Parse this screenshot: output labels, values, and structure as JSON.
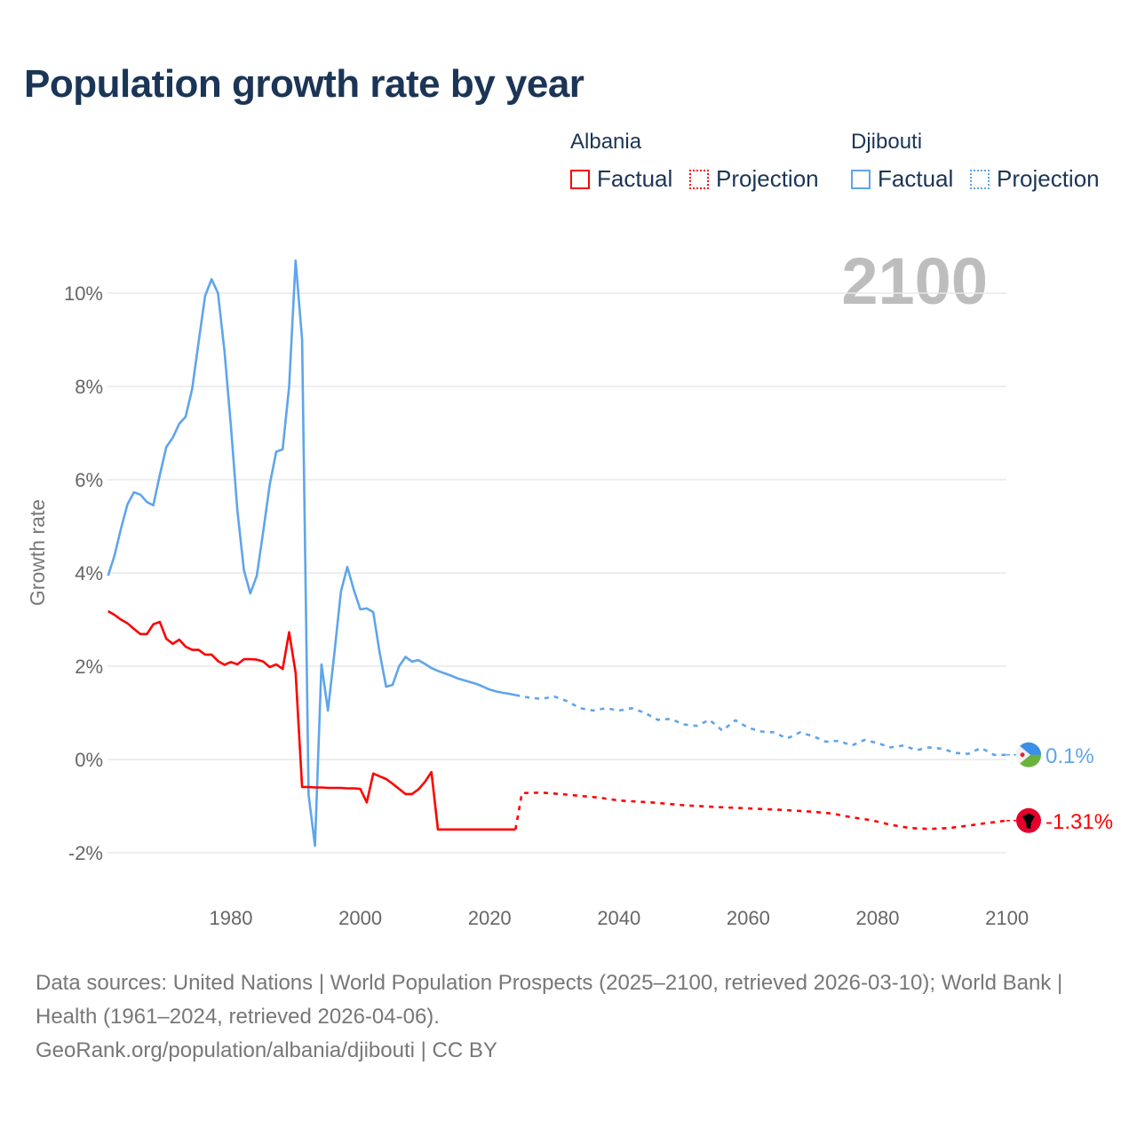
{
  "title": "Population growth rate by year",
  "legend": {
    "groups": [
      {
        "country": "Albania",
        "factual": "Factual",
        "projection": "Projection",
        "color": "#ff0000"
      },
      {
        "country": "Djibouti",
        "factual": "Factual",
        "projection": "Projection",
        "color": "#5ea5ea"
      }
    ]
  },
  "year_label": "2100",
  "footer": {
    "sources": "Data sources: United Nations | World Population Prospects (2025–2100, retrieved 2026-03-10); World Bank | Health (1961–2024, retrieved 2026-04-06).",
    "credit": "GeoRank.org/population/albania/djibouti | CC BY"
  },
  "chart_data": {
    "type": "line",
    "title": "Population growth rate by year",
    "xlabel": "",
    "ylabel": "Growth rate",
    "xlim": [
      1961,
      2100
    ],
    "ylim": [
      -3,
      11
    ],
    "x_ticks": [
      1980,
      2000,
      2020,
      2040,
      2060,
      2080,
      2100
    ],
    "y_ticks": [
      -2,
      0,
      2,
      4,
      6,
      8,
      10
    ],
    "y_tick_labels": [
      "-2%",
      "0%",
      "2%",
      "4%",
      "6%",
      "8%",
      "10%"
    ],
    "grid": true,
    "legend_position": "top-right",
    "series": [
      {
        "name": "Djibouti Factual",
        "color": "#5ea5ea",
        "dash": false,
        "x": [
          1961,
          1962,
          1963,
          1964,
          1965,
          1966,
          1967,
          1968,
          1969,
          1970,
          1971,
          1972,
          1973,
          1974,
          1975,
          1976,
          1977,
          1978,
          1979,
          1980,
          1981,
          1982,
          1983,
          1984,
          1985,
          1986,
          1987,
          1988,
          1989,
          1990,
          1991,
          1992,
          1993,
          1994,
          1995,
          1996,
          1997,
          1998,
          1999,
          2000,
          2001,
          2002,
          2003,
          2004,
          2005,
          2006,
          2007,
          2008,
          2009,
          2010,
          2011,
          2012,
          2013,
          2014,
          2015,
          2016,
          2017,
          2018,
          2019,
          2020,
          2021,
          2022,
          2023,
          2024
        ],
        "values": [
          3.94,
          4.38,
          4.95,
          5.47,
          5.73,
          5.68,
          5.52,
          5.45,
          6.1,
          6.7,
          6.9,
          7.2,
          7.35,
          7.94,
          8.95,
          9.94,
          10.3,
          10.0,
          8.76,
          7.14,
          5.33,
          4.06,
          3.56,
          3.94,
          4.9,
          5.9,
          6.6,
          6.65,
          8.0,
          10.7,
          9.0,
          -0.76,
          -1.85,
          2.04,
          1.05,
          2.29,
          3.6,
          4.13,
          3.64,
          3.22,
          3.24,
          3.16,
          2.29,
          1.56,
          1.6,
          2.0,
          2.2,
          2.1,
          2.13,
          2.05,
          1.96,
          1.9,
          1.85,
          1.8,
          1.74,
          1.7,
          1.66,
          1.62,
          1.56,
          1.5,
          1.46,
          1.43,
          1.41,
          1.38
        ]
      },
      {
        "name": "Djibouti Projection",
        "color": "#5ea5ea",
        "dash": true,
        "x": [
          2024,
          2026,
          2028,
          2030,
          2032,
          2034,
          2036,
          2038,
          2040,
          2042,
          2044,
          2046,
          2048,
          2050,
          2052,
          2054,
          2056,
          2058,
          2060,
          2062,
          2064,
          2066,
          2068,
          2070,
          2072,
          2074,
          2076,
          2078,
          2080,
          2082,
          2084,
          2086,
          2088,
          2090,
          2092,
          2094,
          2096,
          2098,
          2100
        ],
        "values": [
          1.38,
          1.33,
          1.3,
          1.35,
          1.25,
          1.1,
          1.05,
          1.1,
          1.05,
          1.1,
          1.0,
          0.85,
          0.87,
          0.75,
          0.72,
          0.85,
          0.62,
          0.84,
          0.68,
          0.6,
          0.58,
          0.45,
          0.58,
          0.5,
          0.38,
          0.4,
          0.3,
          0.42,
          0.35,
          0.26,
          0.3,
          0.2,
          0.26,
          0.23,
          0.14,
          0.12,
          0.25,
          0.1,
          0.1
        ]
      },
      {
        "name": "Albania Factual",
        "color": "#ff0000",
        "dash": false,
        "x": [
          1961,
          1962,
          1963,
          1964,
          1965,
          1966,
          1967,
          1968,
          1969,
          1970,
          1971,
          1972,
          1973,
          1974,
          1975,
          1976,
          1977,
          1978,
          1979,
          1980,
          1981,
          1982,
          1983,
          1984,
          1985,
          1986,
          1987,
          1988,
          1989,
          1990,
          1991,
          1992,
          1993,
          1994,
          1995,
          1996,
          1997,
          1998,
          1999,
          2000,
          2001,
          2002,
          2003,
          2004,
          2005,
          2006,
          2007,
          2008,
          2009,
          2010,
          2011,
          2012,
          2013,
          2014,
          2015,
          2016,
          2017,
          2018,
          2019,
          2020,
          2021,
          2022,
          2023,
          2024
        ],
        "values": [
          3.18,
          3.1,
          3.0,
          2.92,
          2.8,
          2.69,
          2.69,
          2.9,
          2.95,
          2.59,
          2.48,
          2.57,
          2.42,
          2.35,
          2.35,
          2.25,
          2.25,
          2.11,
          2.03,
          2.09,
          2.04,
          2.15,
          2.15,
          2.14,
          2.1,
          1.98,
          2.04,
          1.94,
          2.73,
          1.86,
          -0.59,
          -0.59,
          -0.6,
          -0.6,
          -0.61,
          -0.61,
          -0.61,
          -0.62,
          -0.62,
          -0.63,
          -0.92,
          -0.3,
          -0.36,
          -0.42,
          -0.52,
          -0.63,
          -0.74,
          -0.74,
          -0.64,
          -0.48,
          -0.27,
          -1.5,
          -1.5,
          -1.5,
          -1.5,
          -1.5,
          -1.5,
          -1.5,
          -1.5,
          -1.5,
          -1.5,
          -1.5,
          -1.5,
          -1.5
        ]
      },
      {
        "name": "Albania Projection",
        "color": "#ff0000",
        "dash": true,
        "x": [
          2024,
          2025,
          2028,
          2031,
          2034,
          2037,
          2040,
          2045,
          2050,
          2055,
          2060,
          2065,
          2070,
          2073,
          2076,
          2079,
          2082,
          2085,
          2088,
          2091,
          2094,
          2097,
          2100
        ],
        "values": [
          -1.5,
          -0.72,
          -0.71,
          -0.74,
          -0.78,
          -0.82,
          -0.88,
          -0.92,
          -0.98,
          -1.02,
          -1.05,
          -1.08,
          -1.12,
          -1.16,
          -1.24,
          -1.3,
          -1.4,
          -1.47,
          -1.49,
          -1.47,
          -1.42,
          -1.36,
          -1.31
        ]
      }
    ],
    "end_labels": [
      {
        "country": "Djibouti",
        "value": 0.1,
        "label": "0.1%",
        "color": "#5ea5ea"
      },
      {
        "country": "Albania",
        "value": -1.31,
        "label": "-1.31%",
        "color": "#ff0000"
      }
    ]
  }
}
